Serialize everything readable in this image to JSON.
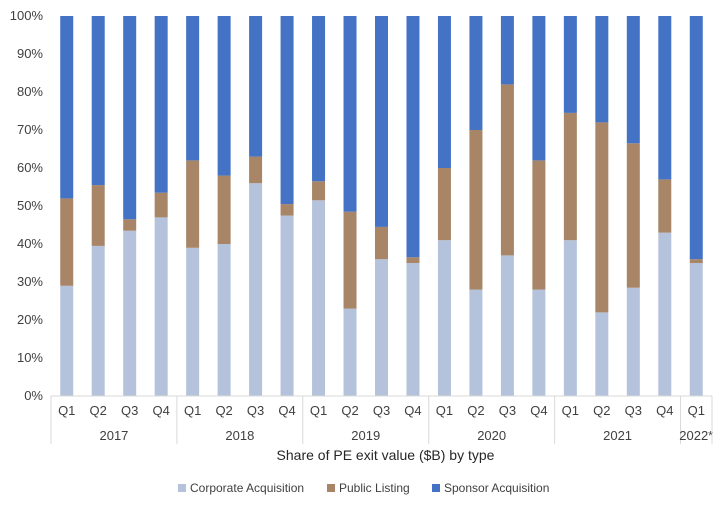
{
  "chart_data": {
    "type": "bar",
    "stacked": "percent",
    "xlabel": "Share of PE exit value ($B) by type",
    "ylabel": "",
    "ylim": [
      0,
      100
    ],
    "y_ticks": [
      "0%",
      "10%",
      "20%",
      "30%",
      "40%",
      "50%",
      "60%",
      "70%",
      "80%",
      "90%",
      "100%"
    ],
    "categories": [
      "Q1",
      "Q2",
      "Q3",
      "Q4",
      "Q1",
      "Q2",
      "Q3",
      "Q4",
      "Q1",
      "Q2",
      "Q3",
      "Q4",
      "Q1",
      "Q2",
      "Q3",
      "Q4",
      "Q1",
      "Q2",
      "Q3",
      "Q4",
      "Q1"
    ],
    "years": [
      {
        "label": "2017",
        "count": 4
      },
      {
        "label": "2018",
        "count": 4
      },
      {
        "label": "2019",
        "count": 4
      },
      {
        "label": "2020",
        "count": 4
      },
      {
        "label": "2021",
        "count": 4
      },
      {
        "label": "2022*",
        "count": 1
      }
    ],
    "series": [
      {
        "name": "Corporate Acquisition",
        "color": "#B4C3DB",
        "values": [
          29,
          39.5,
          43.5,
          47,
          39,
          40,
          56,
          47.5,
          51.5,
          23,
          36,
          35,
          41,
          28,
          37,
          28,
          41,
          22,
          28.5,
          43,
          35
        ]
      },
      {
        "name": "Public Listing",
        "color": "#A88566",
        "values": [
          23,
          16,
          3,
          6.5,
          23,
          18,
          7,
          3,
          5,
          25.5,
          8.5,
          1.5,
          19,
          42,
          45,
          34,
          33.5,
          50,
          38,
          14,
          1
        ]
      },
      {
        "name": "Sponsor Acquisition",
        "color": "#4472C4",
        "values": [
          48,
          44.5,
          53.5,
          46.5,
          38,
          42,
          37,
          49.5,
          43.5,
          51.5,
          55.5,
          63.5,
          40,
          30,
          18,
          38,
          25.5,
          28,
          33.5,
          43,
          64
        ]
      }
    ],
    "legend_position": "bottom",
    "grid": false
  }
}
